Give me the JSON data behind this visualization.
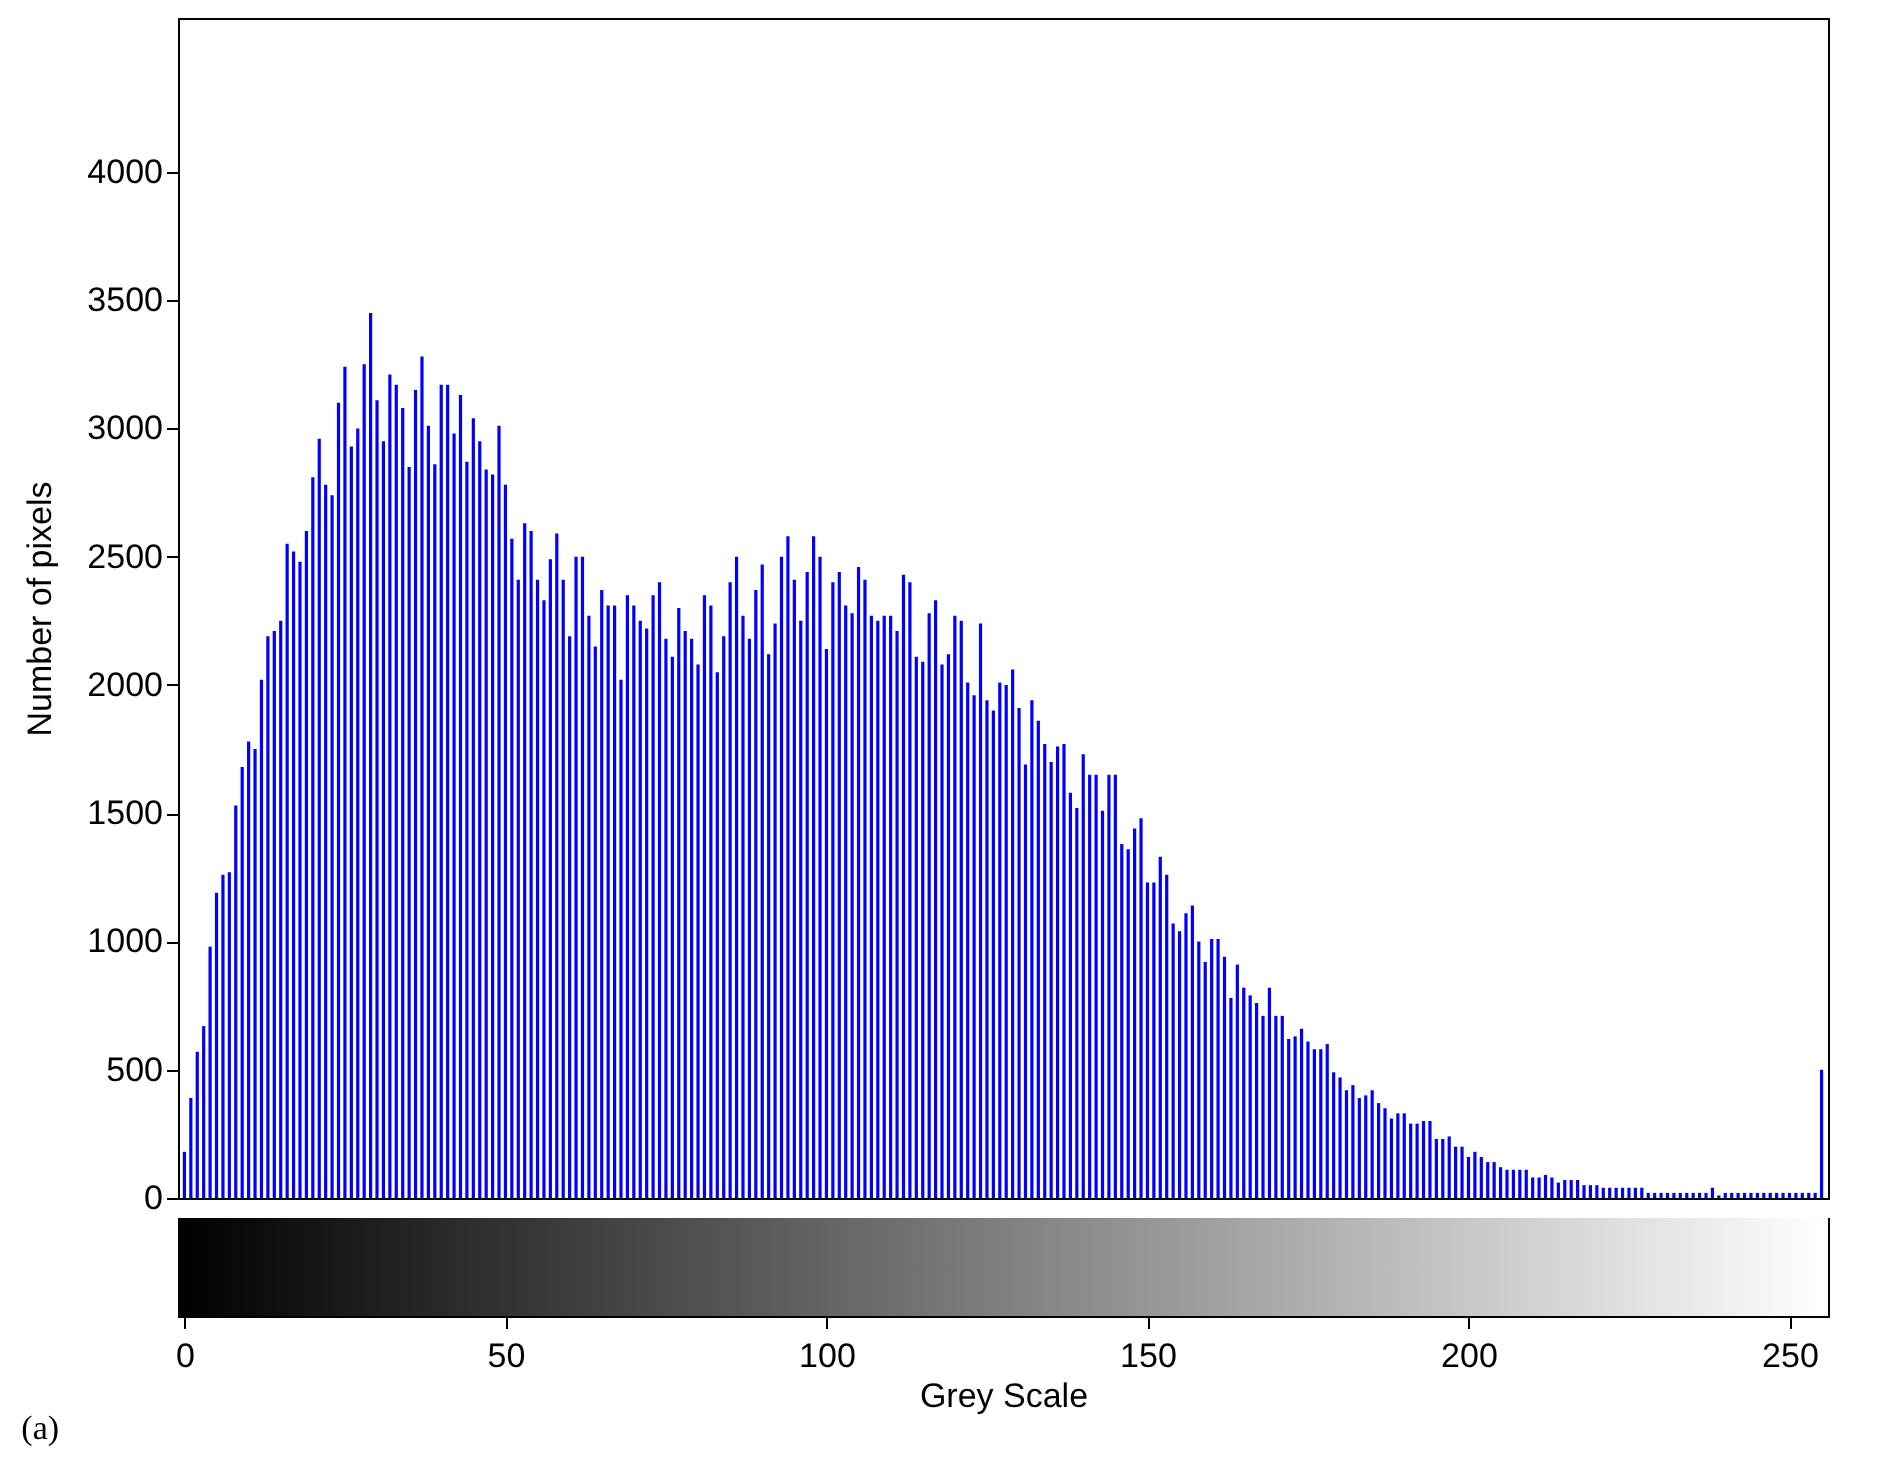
{
  "chart_data": {
    "type": "bar",
    "title": "(a)",
    "xlabel": "Grey Scale",
    "ylabel": "Number of pixels",
    "x": [
      0,
      1,
      2,
      3,
      4,
      5,
      6,
      7,
      8,
      9,
      10,
      11,
      12,
      13,
      14,
      15,
      16,
      17,
      18,
      19,
      20,
      21,
      22,
      23,
      24,
      25,
      26,
      27,
      28,
      29,
      30,
      31,
      32,
      33,
      34,
      35,
      36,
      37,
      38,
      39,
      40,
      41,
      42,
      43,
      44,
      45,
      46,
      47,
      48,
      49,
      50,
      51,
      52,
      53,
      54,
      55,
      56,
      57,
      58,
      59,
      60,
      61,
      62,
      63,
      64,
      65,
      66,
      67,
      68,
      69,
      70,
      71,
      72,
      73,
      74,
      75,
      76,
      77,
      78,
      79,
      80,
      81,
      82,
      83,
      84,
      85,
      86,
      87,
      88,
      89,
      90,
      91,
      92,
      93,
      94,
      95,
      96,
      97,
      98,
      99,
      100,
      101,
      102,
      103,
      104,
      105,
      106,
      107,
      108,
      109,
      110,
      111,
      112,
      113,
      114,
      115,
      116,
      117,
      118,
      119,
      120,
      121,
      122,
      123,
      124,
      125,
      126,
      127,
      128,
      129,
      130,
      131,
      132,
      133,
      134,
      135,
      136,
      137,
      138,
      139,
      140,
      141,
      142,
      143,
      144,
      145,
      146,
      147,
      148,
      149,
      150,
      151,
      152,
      153,
      154,
      155,
      156,
      157,
      158,
      159,
      160,
      161,
      162,
      163,
      164,
      165,
      166,
      167,
      168,
      169,
      170,
      171,
      172,
      173,
      174,
      175,
      176,
      177,
      178,
      179,
      180,
      181,
      182,
      183,
      184,
      185,
      186,
      187,
      188,
      189,
      190,
      191,
      192,
      193,
      194,
      195,
      196,
      197,
      198,
      199,
      200,
      201,
      202,
      203,
      204,
      205,
      206,
      207,
      208,
      209,
      210,
      211,
      212,
      213,
      214,
      215,
      216,
      217,
      218,
      219,
      220,
      221,
      222,
      223,
      224,
      225,
      226,
      227,
      228,
      229,
      230,
      231,
      232,
      233,
      234,
      235,
      236,
      237,
      238,
      239,
      240,
      241,
      242,
      243,
      244,
      245,
      246,
      247,
      248,
      249,
      250,
      251,
      252,
      253,
      254,
      255
    ],
    "values": [
      180,
      390,
      570,
      670,
      980,
      1190,
      1260,
      1270,
      1530,
      1680,
      1780,
      1750,
      2020,
      2190,
      2210,
      2250,
      2550,
      2520,
      2480,
      2600,
      2810,
      2960,
      2780,
      2740,
      3100,
      3240,
      2930,
      3000,
      3250,
      3450,
      3110,
      2950,
      3210,
      3170,
      3080,
      2850,
      3150,
      3280,
      3010,
      2860,
      3170,
      3170,
      2980,
      3130,
      2870,
      3040,
      2950,
      2840,
      2820,
      3010,
      2780,
      2570,
      2410,
      2630,
      2600,
      2410,
      2330,
      2490,
      2590,
      2410,
      2190,
      2500,
      2500,
      2270,
      2150,
      2370,
      2310,
      2310,
      2020,
      2350,
      2310,
      2250,
      2220,
      2350,
      2400,
      2180,
      2110,
      2300,
      2210,
      2180,
      2080,
      2350,
      2310,
      2050,
      2190,
      2400,
      2500,
      2270,
      2180,
      2370,
      2470,
      2120,
      2240,
      2500,
      2580,
      2410,
      2250,
      2440,
      2580,
      2500,
      2140,
      2400,
      2440,
      2310,
      2280,
      2460,
      2410,
      2270,
      2250,
      2270,
      2270,
      2210,
      2430,
      2400,
      2110,
      2090,
      2280,
      2330,
      2080,
      2120,
      2270,
      2250,
      2010,
      1960,
      2240,
      1940,
      1900,
      2010,
      2000,
      2060,
      1910,
      1690,
      1940,
      1860,
      1770,
      1700,
      1760,
      1770,
      1580,
      1520,
      1730,
      1650,
      1650,
      1510,
      1650,
      1650,
      1380,
      1360,
      1440,
      1480,
      1230,
      1230,
      1330,
      1260,
      1070,
      1040,
      1110,
      1140,
      1000,
      920,
      1010,
      1010,
      940,
      780,
      910,
      820,
      790,
      760,
      710,
      820,
      710,
      710,
      620,
      630,
      660,
      610,
      580,
      580,
      600,
      490,
      470,
      420,
      440,
      390,
      400,
      420,
      370,
      350,
      310,
      330,
      330,
      290,
      290,
      300,
      300,
      230,
      230,
      240,
      200,
      200,
      160,
      180,
      160,
      140,
      140,
      120,
      110,
      110,
      110,
      110,
      80,
      80,
      90,
      80,
      60,
      70,
      70,
      70,
      50,
      50,
      50,
      40,
      40,
      40,
      40,
      40,
      40,
      40,
      20,
      20,
      20,
      20,
      20,
      20,
      20,
      20,
      20,
      20,
      40,
      10,
      20,
      20,
      20,
      20,
      20,
      20,
      20,
      20,
      20,
      20,
      20,
      20,
      20,
      20,
      20,
      500
    ],
    "color": "#0000ff",
    "xlim": [
      -1,
      256
    ],
    "xticks": [
      0,
      50,
      100,
      150,
      200,
      250
    ],
    "ylim": [
      0,
      4600
    ],
    "yticks": [
      0,
      500,
      1000,
      1500,
      2000,
      2500,
      3000,
      3500,
      4000
    ],
    "grid": false
  }
}
